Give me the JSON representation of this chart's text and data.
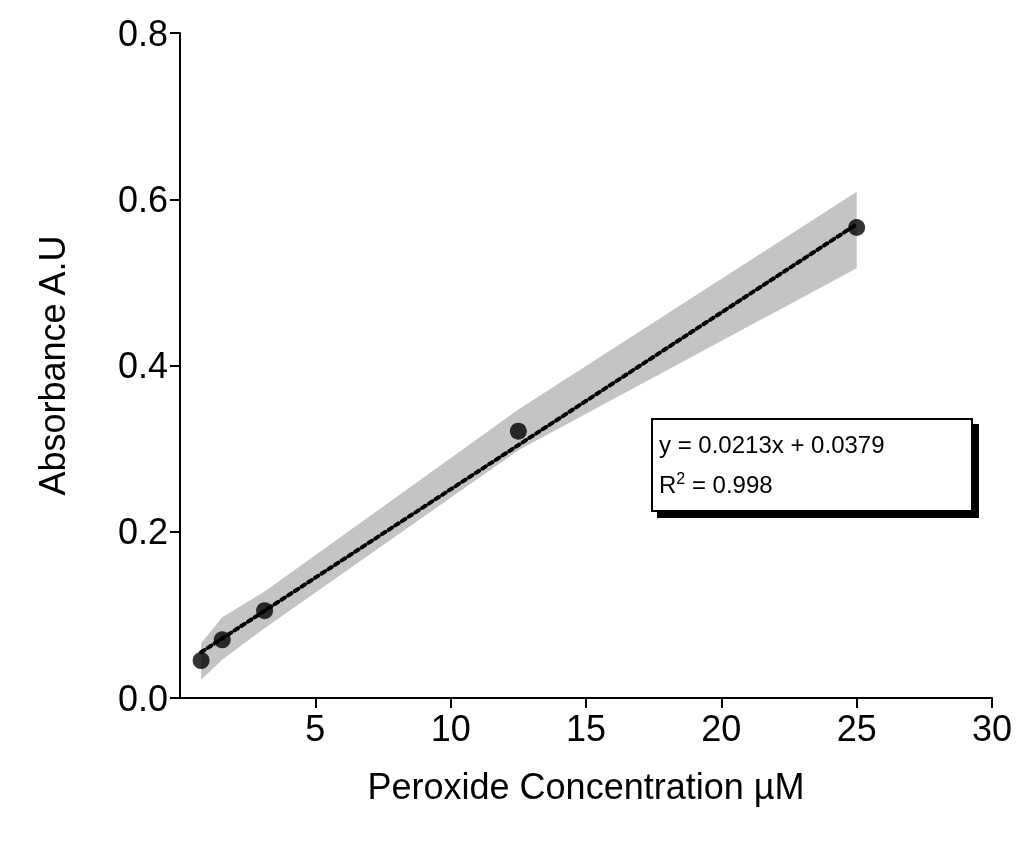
{
  "chart_data": {
    "type": "scatter",
    "xlabel": "Peroxide Concentration µM",
    "ylabel": "Absorbance A.U",
    "xlim": [
      0,
      30
    ],
    "xticks": [
      5,
      10,
      15,
      20,
      25,
      30
    ],
    "ylim": [
      0,
      0.8
    ],
    "yticks": [
      {
        "value": 0,
        "label": "0.0"
      },
      {
        "value": 0.2,
        "label": "0.2"
      },
      {
        "value": 0.4,
        "label": "0.4"
      },
      {
        "value": 0.6,
        "label": "0.6"
      },
      {
        "value": 0.8,
        "label": "0.8"
      }
    ],
    "grid": false,
    "marker": "circle",
    "series": [
      {
        "color": "#000000",
        "x": [
          0.78,
          1.56,
          3.125,
          12.5,
          25
        ],
        "values": [
          0.045,
          0.07,
          0.105,
          0.321,
          0.566
        ],
        "lower": [
          0.022,
          0.046,
          0.084,
          0.298,
          0.517
        ],
        "upper": [
          0.066,
          0.097,
          0.128,
          0.347,
          0.609
        ]
      },
      {
        "type": "line",
        "color": "#000000",
        "line_style": "dotted",
        "marker": "none",
        "x": [
          0.78,
          25
        ],
        "values": [
          0.055,
          0.57
        ]
      }
    ],
    "annotations": [
      "y = 0.0213x + 0.0379",
      "R$^{2}$ = 0.998"
    ]
  }
}
